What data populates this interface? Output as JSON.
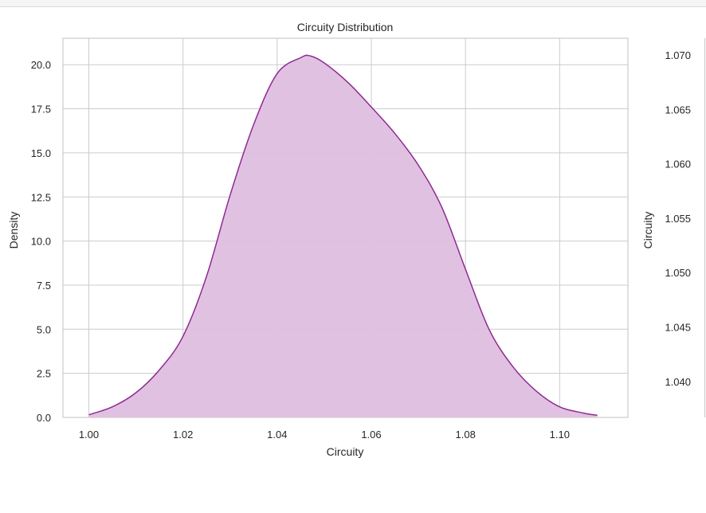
{
  "chart_data": [
    {
      "type": "area",
      "title": "Circuity Distribution",
      "xlabel": "Circuity",
      "ylabel": "Density",
      "xlim": [
        0.9945,
        1.1145
      ],
      "ylim": [
        0.0,
        21.5
      ],
      "xticks": [
        "1.00",
        "1.02",
        "1.04",
        "1.06",
        "1.08",
        "1.10"
      ],
      "yticks": [
        "0.0",
        "2.5",
        "5.0",
        "7.5",
        "10.0",
        "12.5",
        "15.0",
        "17.5",
        "20.0"
      ],
      "grid": true,
      "series": [
        {
          "x": [
            1.0,
            1.005,
            1.01,
            1.015,
            1.02,
            1.025,
            1.03,
            1.035,
            1.04,
            1.045,
            1.047,
            1.05,
            1.055,
            1.06,
            1.065,
            1.07,
            1.075,
            1.08,
            1.085,
            1.09,
            1.095,
            1.1,
            1.105,
            1.108
          ],
          "y": [
            0.15,
            0.6,
            1.4,
            2.7,
            4.6,
            8.0,
            12.6,
            16.6,
            19.5,
            20.4,
            20.5,
            20.1,
            19.0,
            17.6,
            16.1,
            14.3,
            11.9,
            8.4,
            5.0,
            2.9,
            1.5,
            0.6,
            0.25,
            0.12
          ]
        }
      ],
      "colors": {
        "line": "#8e2a92",
        "fill": "#dfbedf",
        "grid": "#cccccc",
        "frame": "#cccccc"
      }
    },
    {
      "type": "line",
      "xlabel": "",
      "ylabel": "Circuity",
      "yticks": [
        "1.070",
        "1.065",
        "1.060",
        "1.055",
        "1.050",
        "1.045",
        "1.040"
      ],
      "partial": true
    }
  ]
}
